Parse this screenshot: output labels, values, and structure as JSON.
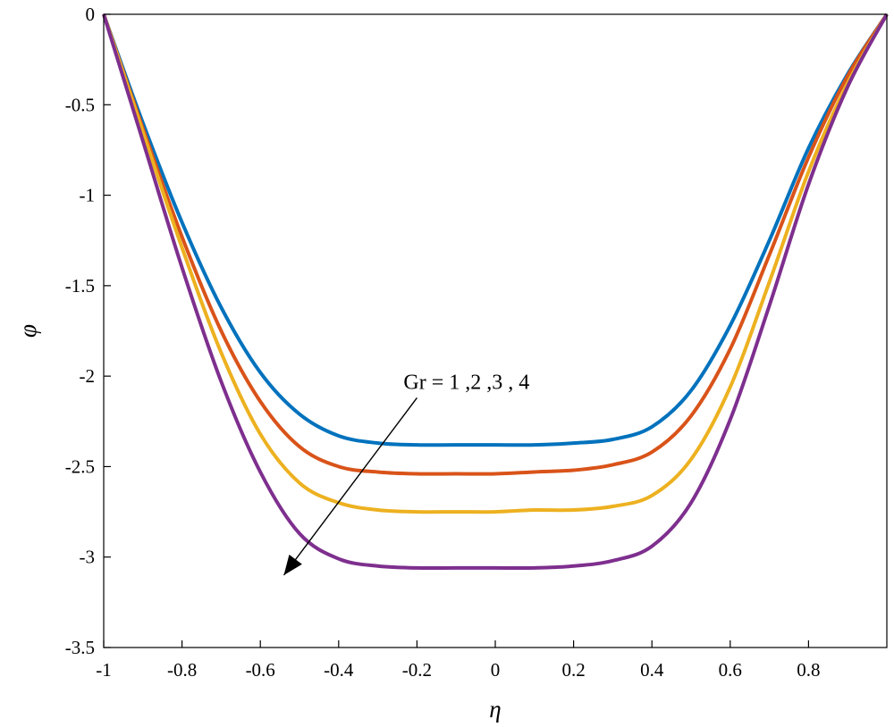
{
  "chart_data": {
    "type": "line",
    "xlabel": "η",
    "ylabel": "φ",
    "xlim": [
      -1,
      1
    ],
    "ylim": [
      -3.5,
      0
    ],
    "xticks": [
      "-1",
      "-0.8",
      "-0.6",
      "-0.4",
      "-0.2",
      "0",
      "0.2",
      "0.4",
      "0.6",
      "0.8"
    ],
    "yticks": [
      "0",
      "-0.5",
      "-1",
      "-1.5",
      "-2",
      "-2.5",
      "-3",
      "-3.5"
    ],
    "x": [
      -1.0,
      -0.9,
      -0.8,
      -0.7,
      -0.6,
      -0.5,
      -0.4,
      -0.3,
      -0.2,
      -0.1,
      0.0,
      0.1,
      0.2,
      0.3,
      0.4,
      0.5,
      0.6,
      0.7,
      0.8,
      0.9,
      1.0
    ],
    "series": [
      {
        "color": "#0072BD",
        "values": [
          0,
          -0.6,
          -1.15,
          -1.62,
          -1.98,
          -2.21,
          -2.33,
          -2.37,
          -2.38,
          -2.38,
          -2.38,
          -2.38,
          -2.37,
          -2.35,
          -2.28,
          -2.08,
          -1.72,
          -1.25,
          -0.74,
          -0.33,
          0
        ]
      },
      {
        "color": "#D95319",
        "values": [
          0,
          -0.63,
          -1.23,
          -1.75,
          -2.14,
          -2.39,
          -2.5,
          -2.53,
          -2.54,
          -2.54,
          -2.54,
          -2.53,
          -2.52,
          -2.49,
          -2.42,
          -2.22,
          -1.85,
          -1.33,
          -0.79,
          -0.34,
          0
        ]
      },
      {
        "color": "#EDB120",
        "values": [
          0,
          -0.65,
          -1.29,
          -1.87,
          -2.32,
          -2.59,
          -2.7,
          -2.74,
          -2.75,
          -2.75,
          -2.75,
          -2.74,
          -2.74,
          -2.72,
          -2.66,
          -2.46,
          -2.06,
          -1.48,
          -0.87,
          -0.38,
          0
        ]
      },
      {
        "color": "#7E2F8E",
        "values": [
          0,
          -0.7,
          -1.4,
          -2.03,
          -2.53,
          -2.87,
          -3.01,
          -3.05,
          -3.06,
          -3.06,
          -3.06,
          -3.06,
          -3.05,
          -3.02,
          -2.94,
          -2.7,
          -2.24,
          -1.61,
          -0.94,
          -0.4,
          0
        ]
      }
    ],
    "annotation": {
      "text": "Gr = 1 ,2 ,3 , 4",
      "arrow_from": [
        -0.2,
        -2.12
      ],
      "arrow_to": [
        -0.54,
        -3.1
      ]
    },
    "grid": false,
    "legend": "none"
  }
}
